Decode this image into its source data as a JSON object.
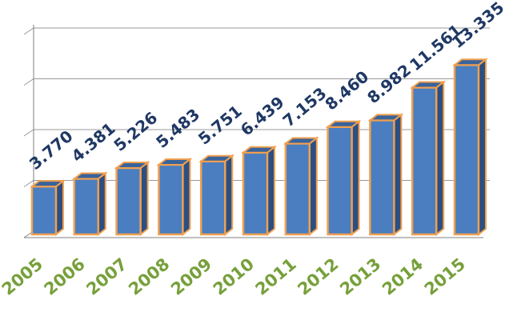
{
  "chart_data": {
    "type": "bar",
    "style": "3d-column",
    "categories": [
      "2005",
      "2006",
      "2007",
      "2008",
      "2009",
      "2010",
      "2011",
      "2012",
      "2013",
      "2014",
      "2015"
    ],
    "values": [
      3770,
      4381,
      5226,
      5483,
      5751,
      6439,
      7153,
      8460,
      8982,
      11561,
      13335
    ],
    "value_labels": [
      "3.770",
      "4.381",
      "5.226",
      "5.483",
      "5.751",
      "6.439",
      "7.153",
      "8.460",
      "8.982",
      "11.561",
      "13.335"
    ],
    "title": "",
    "xlabel": "",
    "ylabel": "",
    "ylim": [
      0,
      16000
    ],
    "grid": true,
    "legend": "none",
    "colors": {
      "bar_front": "#4a7ec0",
      "bar_side": "#2b4f83",
      "bar_top": "#3a639b",
      "bar_edge": "#f0a050",
      "value_label": "#1f3864",
      "category_label": "#76a03a",
      "gridline": "#7f7f7f"
    }
  }
}
